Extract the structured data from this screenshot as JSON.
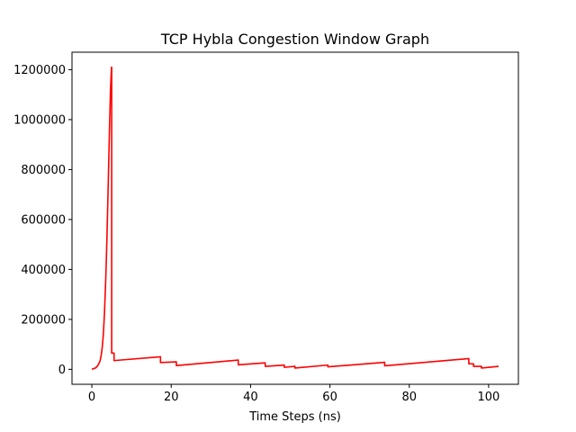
{
  "chart_data": {
    "type": "line",
    "title": "TCP Hybla Congestion Window Graph",
    "xlabel": "Time Steps (ns)",
    "ylabel": "",
    "xlim": [
      -5,
      107.5
    ],
    "ylim": [
      -60000,
      1270000
    ],
    "xticks": [
      0,
      20,
      40,
      60,
      80,
      100
    ],
    "yticks": [
      0,
      200000,
      400000,
      600000,
      800000,
      1000000,
      1200000
    ],
    "grid": false,
    "series": [
      {
        "color": "#ff0000",
        "x": [
          0,
          0.5,
          1,
          1.5,
          2,
          2.3,
          2.6,
          2.9,
          3.2,
          3.5,
          3.8,
          4.1,
          4.4,
          4.7,
          4.95,
          5,
          5,
          5.6,
          5.6,
          17.3,
          17.3,
          21.3,
          21.3,
          36.9,
          36.9,
          43.7,
          43.7,
          48.5,
          48.5,
          51.2,
          51.2,
          59.5,
          59.5,
          73.8,
          73.8,
          95.0,
          95.0,
          96.2,
          96.2,
          98.2,
          98.2,
          102.5
        ],
        "y": [
          0,
          3000,
          6000,
          15000,
          30000,
          50000,
          85000,
          140000,
          230000,
          360000,
          520000,
          720000,
          930000,
          1120000,
          1210000,
          1210000,
          65000,
          65000,
          35000,
          50000,
          27000,
          30000,
          15000,
          37000,
          18000,
          26000,
          12000,
          17000,
          8000,
          12000,
          5000,
          17000,
          10000,
          28000,
          14000,
          43000,
          22000,
          22000,
          12000,
          12000,
          5000,
          12000
        ]
      }
    ]
  }
}
